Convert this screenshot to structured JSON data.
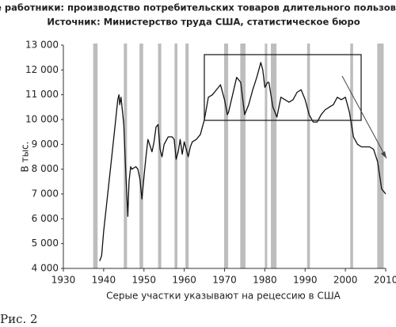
{
  "chart_data": {
    "type": "line",
    "title": "Все работники: производство потребительских товаров длительного пользования.",
    "subtitle": "Источник: Министерство труда США, статистическое бюро",
    "x_label": "Серые участки указывают на рецессию в США",
    "y_label": "В тыс.",
    "caption": "Рис. 2",
    "x": [
      1939,
      1939.5,
      1940,
      1941,
      1942,
      1943,
      1943.5,
      1943.8,
      1944,
      1944.3,
      1945,
      1945.5,
      1946,
      1946.3,
      1946.7,
      1947,
      1948,
      1948.5,
      1949,
      1949.5,
      1950,
      1950.5,
      1951,
      1952,
      1952.5,
      1953,
      1953.5,
      1954,
      1954.5,
      1955,
      1956,
      1957,
      1957.5,
      1958,
      1958.5,
      1959,
      1959.5,
      1960,
      1960.5,
      1961,
      1961.5,
      1962,
      1963,
      1964,
      1965,
      1966,
      1967,
      1968,
      1969,
      1970,
      1970.7,
      1971,
      1972,
      1973,
      1974,
      1975,
      1976,
      1977,
      1978,
      1979,
      1979.5,
      1980,
      1980.7,
      1981,
      1982,
      1983,
      1984,
      1985,
      1986,
      1987,
      1988,
      1989,
      1990,
      1991,
      1992,
      1993,
      1994,
      1995,
      1996,
      1997,
      1998,
      1999,
      2000,
      2001,
      2002,
      2003,
      2004,
      2005,
      2006,
      2007,
      2008,
      2009,
      2010
    ],
    "series": [
      {
        "color": "#111111",
        "values": [
          4300,
          4500,
          5500,
          7000,
          8500,
          10000,
          10800,
          11000,
          10600,
          10900,
          9800,
          7800,
          6100,
          7500,
          8100,
          8000,
          8100,
          8000,
          7600,
          6800,
          7700,
          8500,
          9200,
          8700,
          9100,
          9700,
          9800,
          8800,
          8500,
          9000,
          9300,
          9300,
          9200,
          8400,
          8700,
          9200,
          8600,
          9100,
          8800,
          8500,
          8900,
          9100,
          9200,
          9400,
          10000,
          10900,
          11000,
          11200,
          11400,
          10800,
          10200,
          10300,
          11000,
          11700,
          11500,
          10200,
          10600,
          11200,
          11700,
          12300,
          12000,
          11300,
          11500,
          11500,
          10500,
          10100,
          10900,
          10800,
          10700,
          10800,
          11100,
          11200,
          10800,
          10200,
          9900,
          9900,
          10200,
          10400,
          10500,
          10600,
          10900,
          10800,
          10900,
          10300,
          9300,
          9000,
          8900,
          8900,
          8900,
          8800,
          8300,
          7200,
          7000
        ]
      }
    ],
    "recessions": [
      [
        1937.4,
        1938.5
      ],
      [
        1945,
        1945.8
      ],
      [
        1948.9,
        1949.8
      ],
      [
        1953.5,
        1954.3
      ],
      [
        1957.6,
        1958.3
      ],
      [
        1960.3,
        1961.1
      ],
      [
        1969.9,
        1970.9
      ],
      [
        1973.9,
        1975.2
      ],
      [
        1980,
        1980.6
      ],
      [
        1981.5,
        1982.9
      ],
      [
        1990.5,
        1991.2
      ],
      [
        2001.2,
        2001.9
      ],
      [
        2007.9,
        2009.5
      ]
    ],
    "recession_color": "#bdbdbd",
    "xlim": [
      1930,
      2010
    ],
    "xticks": [
      1930,
      1940,
      1950,
      1960,
      1970,
      1980,
      1990,
      2000,
      2010
    ],
    "ylim": [
      4000,
      13000
    ],
    "yticks": [
      {
        "value": 4000,
        "label": "4 000"
      },
      {
        "value": 5000,
        "label": "5 000"
      },
      {
        "value": 6000,
        "label": "6 000"
      },
      {
        "value": 7000,
        "label": "7 000"
      },
      {
        "value": 8000,
        "label": "8 000"
      },
      {
        "value": 9000,
        "label": "9 000"
      },
      {
        "value": 10000,
        "label": "10 000"
      },
      {
        "value": 11000,
        "label": "11 000"
      },
      {
        "value": 12000,
        "label": "12 000"
      },
      {
        "value": 13000,
        "label": "13 000"
      }
    ]
  }
}
